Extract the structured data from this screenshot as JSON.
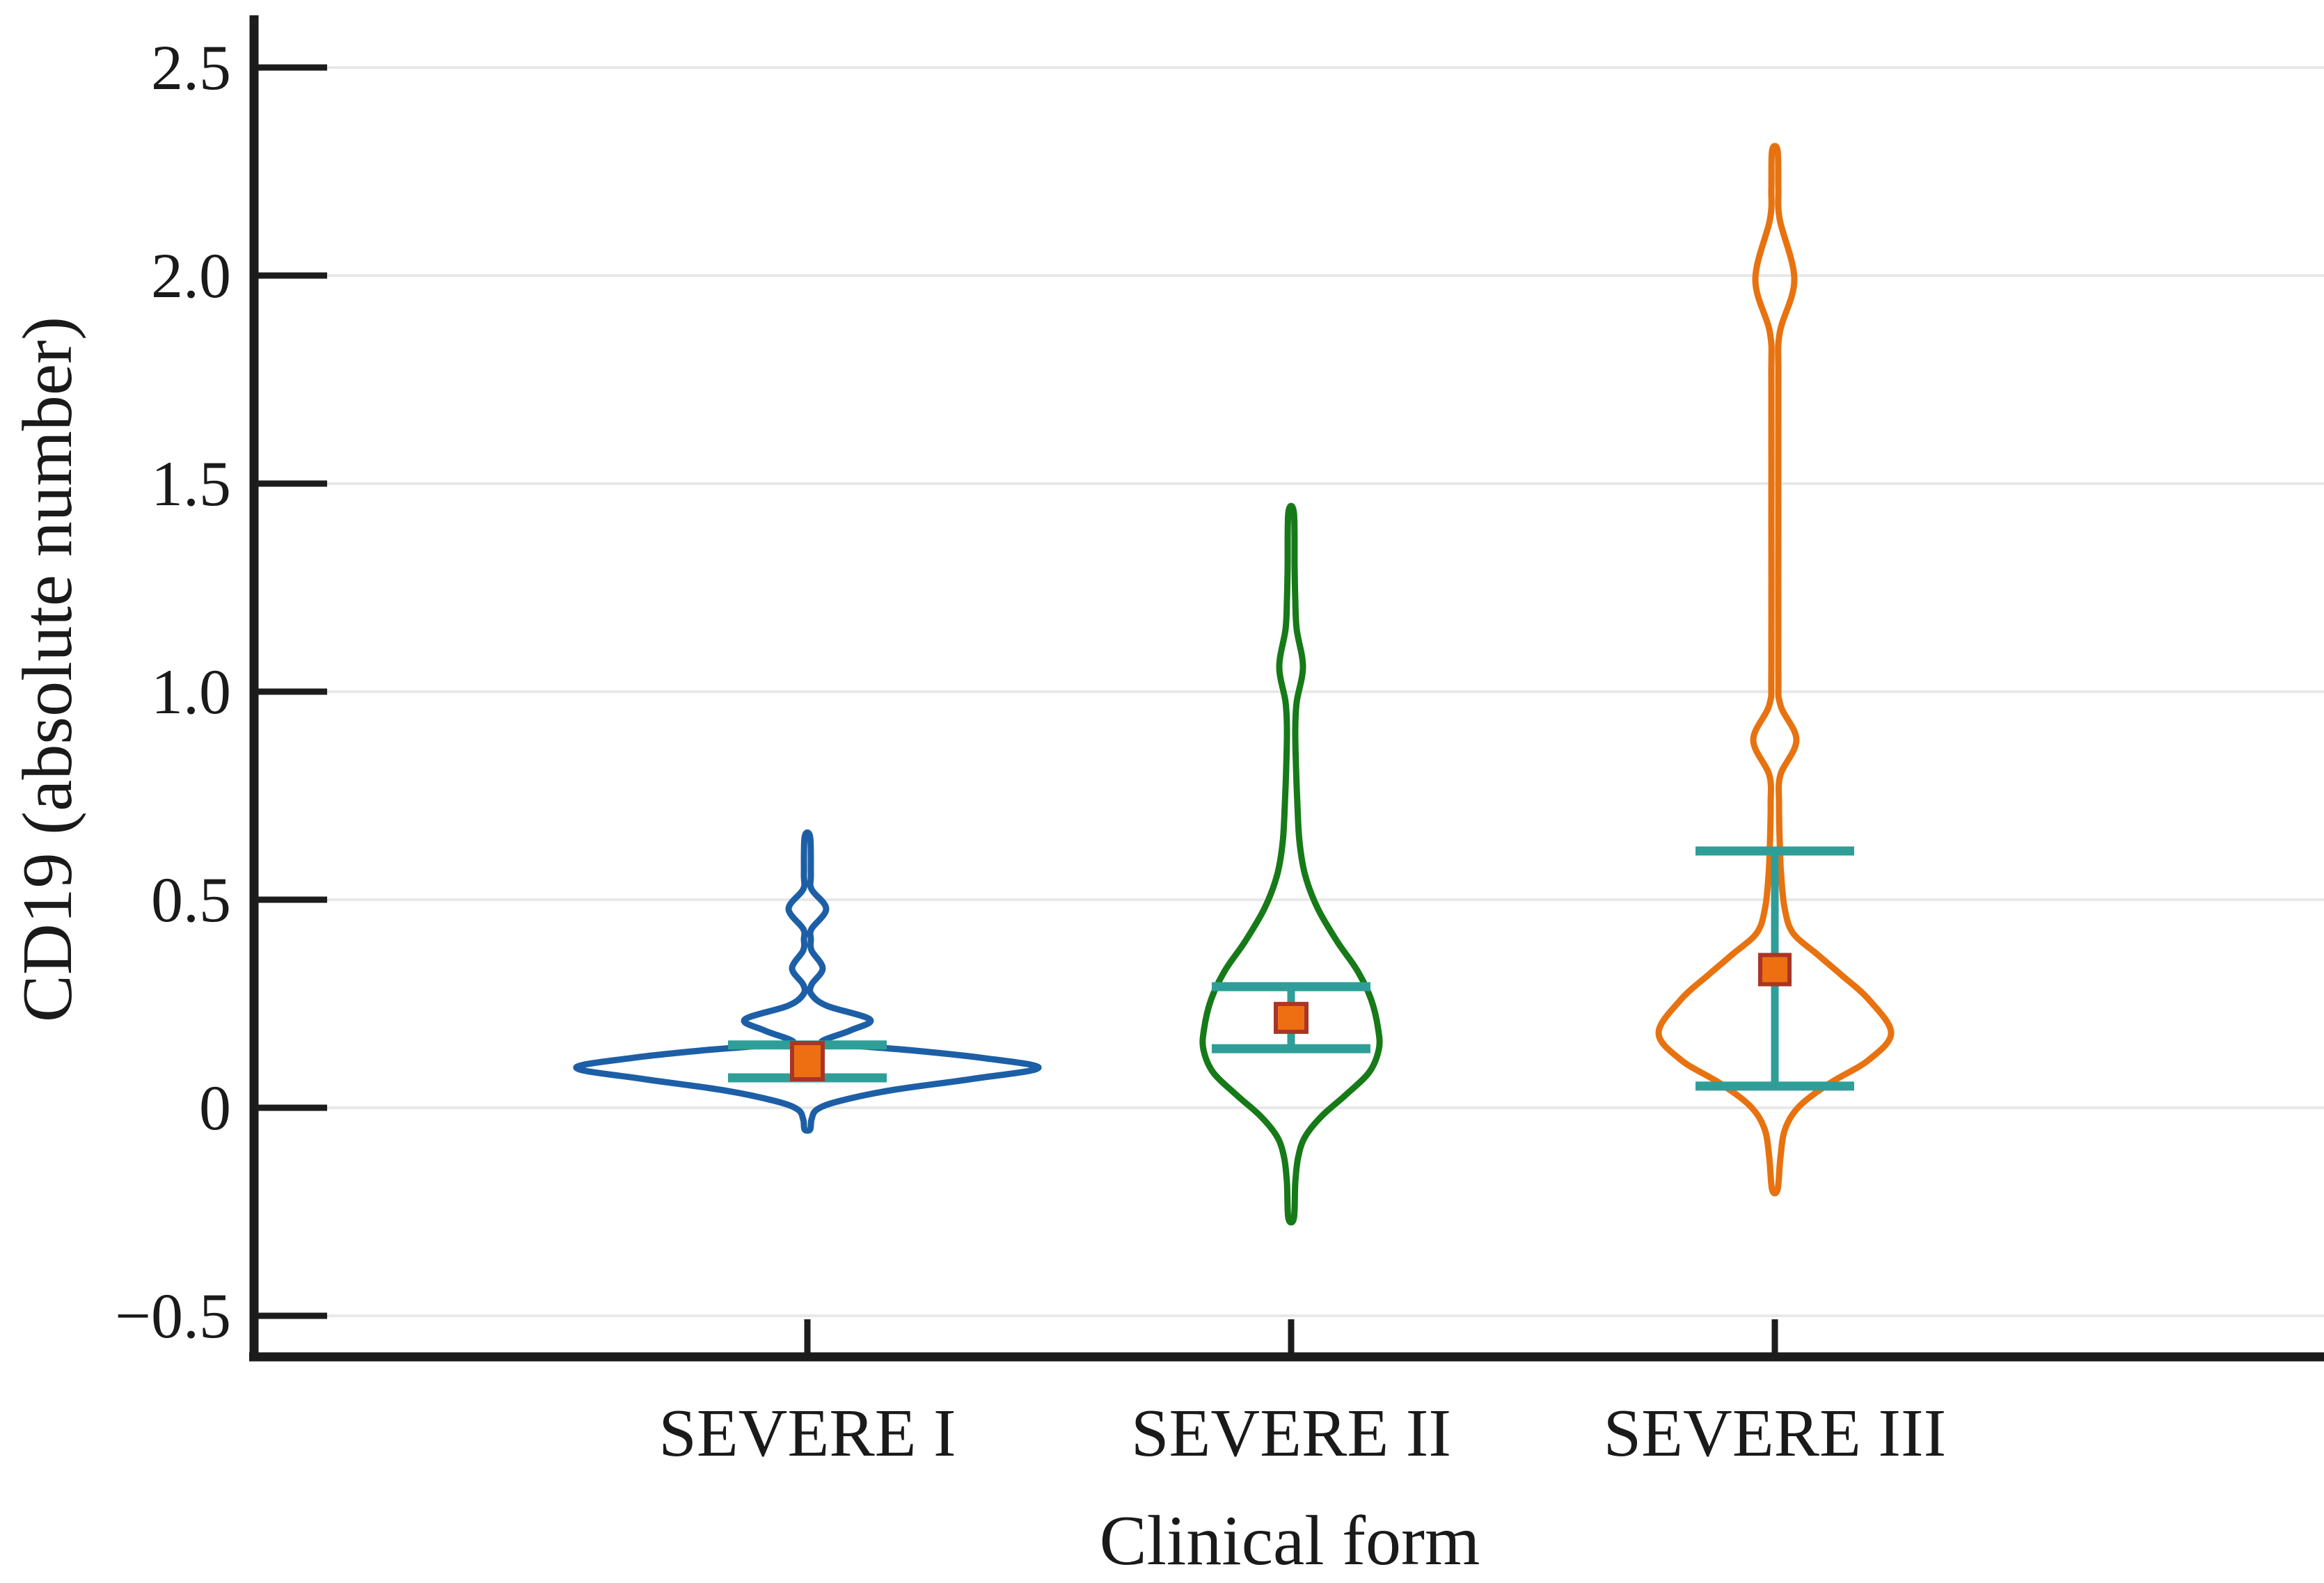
{
  "page": {
    "background": "#ffffff"
  },
  "chart_data": {
    "type": "violin",
    "title": "",
    "xlabel": "Clinical form",
    "ylabel": "CD19 (absolute number)",
    "categories": [
      "SEVERE I",
      "SEVERE II",
      "SEVERE III"
    ],
    "ytick_labels": [
      "2.5",
      "2.0",
      "1.5",
      "1.0",
      "0.5",
      "0",
      "−0.5"
    ],
    "ytick_values": [
      2.5,
      2.0,
      1.5,
      1.0,
      0.5,
      0,
      -0.5
    ],
    "ylim": [
      -0.62,
      2.56
    ],
    "grid": true,
    "legend": false,
    "colors": {
      "axis": "#1c1c1c",
      "grid": "#e8e8e8",
      "whisker": "#2f9e98",
      "marker_fill": "#ee6f12",
      "marker_edge": "#a93528",
      "text": "#1a1a1a",
      "background": "#ffffff"
    },
    "series": [
      {
        "name": "SEVERE I",
        "color": "#1d5fa6",
        "center_x": 1160,
        "max": 0.65,
        "min": -0.05,
        "mean_marker": 0.112,
        "whisker_top": 0.151,
        "whisker_bottom": 0.072,
        "marker_size": [
          44,
          52
        ],
        "density_profile": [
          [
            0.65,
            4
          ],
          [
            0.56,
            5
          ],
          [
            0.525,
            6
          ],
          [
            0.478,
            27
          ],
          [
            0.43,
            6
          ],
          [
            0.405,
            5
          ],
          [
            0.378,
            6
          ],
          [
            0.335,
            22
          ],
          [
            0.296,
            6
          ],
          [
            0.272,
            6
          ],
          [
            0.245,
            28
          ],
          [
            0.212,
            90
          ],
          [
            0.186,
            62
          ],
          [
            0.158,
            20
          ],
          [
            0.15,
            60
          ],
          [
            0.138,
            150
          ],
          [
            0.12,
            250
          ],
          [
            0.096,
            332
          ],
          [
            0.07,
            240
          ],
          [
            0.042,
            120
          ],
          [
            0.016,
            46
          ],
          [
            -0.004,
            14
          ],
          [
            -0.028,
            6
          ],
          [
            -0.052,
            4
          ]
        ]
      },
      {
        "name": "SEVERE II",
        "color": "#167a18",
        "center_x": 1855,
        "max": 1.43,
        "min": -0.265,
        "mean_marker": 0.216,
        "whisker_top": 0.291,
        "whisker_bottom": 0.142,
        "marker_size": [
          44,
          40
        ],
        "density_profile": [
          [
            1.43,
            4
          ],
          [
            1.3,
            5
          ],
          [
            1.22,
            6
          ],
          [
            1.15,
            8
          ],
          [
            1.06,
            17
          ],
          [
            0.975,
            8
          ],
          [
            0.91,
            6
          ],
          [
            0.82,
            7
          ],
          [
            0.73,
            9
          ],
          [
            0.64,
            12
          ],
          [
            0.56,
            20
          ],
          [
            0.48,
            38
          ],
          [
            0.4,
            66
          ],
          [
            0.33,
            95
          ],
          [
            0.26,
            115
          ],
          [
            0.19,
            125
          ],
          [
            0.14,
            126
          ],
          [
            0.085,
            112
          ],
          [
            0.03,
            78
          ],
          [
            -0.02,
            44
          ],
          [
            -0.07,
            20
          ],
          [
            -0.12,
            10
          ],
          [
            -0.18,
            6
          ],
          [
            -0.265,
            4
          ]
        ]
      },
      {
        "name": "SEVERE III",
        "color": "#e8720f",
        "center_x": 2550,
        "max": 2.3,
        "min": -0.196,
        "mean_marker": 0.332,
        "whisker_top": 0.617,
        "whisker_bottom": 0.052,
        "marker_size": [
          42,
          42
        ],
        "density_profile": [
          [
            2.3,
            4
          ],
          [
            2.21,
            5
          ],
          [
            2.135,
            7
          ],
          [
            1.99,
            28
          ],
          [
            1.862,
            7
          ],
          [
            1.75,
            5
          ],
          [
            1.4,
            5
          ],
          [
            1.05,
            5
          ],
          [
            0.968,
            8
          ],
          [
            0.884,
            31
          ],
          [
            0.8,
            8
          ],
          [
            0.73,
            6
          ],
          [
            0.64,
            7
          ],
          [
            0.56,
            9
          ],
          [
            0.48,
            14
          ],
          [
            0.42,
            26
          ],
          [
            0.37,
            60
          ],
          [
            0.32,
            95
          ],
          [
            0.26,
            135
          ],
          [
            0.18,
            167
          ],
          [
            0.115,
            135
          ],
          [
            0.06,
            80
          ],
          [
            0.005,
            36
          ],
          [
            -0.05,
            15
          ],
          [
            -0.12,
            8
          ],
          [
            -0.196,
            4
          ]
        ]
      }
    ]
  }
}
